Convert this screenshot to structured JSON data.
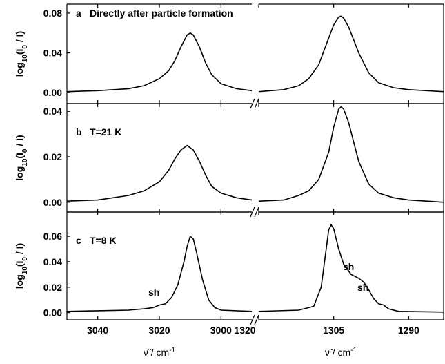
{
  "chart_data": [
    {
      "type": "line",
      "panel_label": "a",
      "annotation": "Directly after particle formation",
      "ylabel": [
        "log",
        "10",
        "(I",
        "0",
        " / I)"
      ],
      "color": "#000000",
      "ylim": [
        -0.011,
        0.089
      ],
      "yticks": [
        {
          "value": 0,
          "label": "0.00"
        },
        {
          "value": 0.04,
          "label": "0.04"
        },
        {
          "value": 0.08,
          "label": "0.08"
        }
      ],
      "segments": [
        {
          "xlim": [
            3050,
            2990
          ],
          "xticks": [
            3040,
            3020,
            3000
          ],
          "x": [
            3050,
            3040,
            3030,
            3025,
            3020,
            3017,
            3015,
            3013,
            3011,
            3010,
            3009,
            3007,
            3005,
            3003,
            3000,
            2995,
            2990
          ],
          "values": [
            0.001,
            0.002,
            0.004,
            0.007,
            0.014,
            0.022,
            0.032,
            0.046,
            0.058,
            0.06,
            0.058,
            0.046,
            0.03,
            0.018,
            0.009,
            0.004,
            0.002
          ]
        },
        {
          "xlim": [
            1320,
            1283
          ],
          "xticks": [
            1320,
            1305,
            1290
          ],
          "x": [
            1320,
            1315,
            1312,
            1310,
            1308,
            1306,
            1305,
            1304,
            1303.5,
            1303,
            1302,
            1300,
            1298,
            1296,
            1293,
            1290,
            1283
          ],
          "values": [
            0.001,
            0.003,
            0.007,
            0.014,
            0.028,
            0.055,
            0.068,
            0.076,
            0.077,
            0.075,
            0.066,
            0.04,
            0.02,
            0.01,
            0.005,
            0.003,
            0.001
          ]
        }
      ]
    },
    {
      "type": "line",
      "panel_label": "b",
      "annotation": "T=21 K",
      "ylabel": [
        "log",
        "10",
        "(I",
        "0",
        " / I)"
      ],
      "color": "#000000",
      "ylim": [
        -0.0043,
        0.0434
      ],
      "yticks": [
        {
          "value": 0,
          "label": "0.00"
        },
        {
          "value": 0.02,
          "label": "0.02"
        },
        {
          "value": 0.04,
          "label": "0.04"
        }
      ],
      "segments": [
        {
          "xlim": [
            3050,
            2990
          ],
          "xticks": [
            3040,
            3020,
            3000
          ],
          "x": [
            3050,
            3040,
            3030,
            3025,
            3020,
            3017,
            3015,
            3013,
            3011,
            3009,
            3007,
            3005,
            3003,
            3000,
            2995,
            2990
          ],
          "values": [
            0.0005,
            0.001,
            0.003,
            0.005,
            0.009,
            0.014,
            0.019,
            0.023,
            0.025,
            0.023,
            0.018,
            0.012,
            0.007,
            0.004,
            0.002,
            0.001
          ]
        },
        {
          "xlim": [
            1320,
            1283
          ],
          "xticks": [
            1320,
            1305,
            1290
          ],
          "x": [
            1320,
            1315,
            1312,
            1310,
            1308,
            1306,
            1305,
            1304,
            1303.5,
            1303,
            1302,
            1300,
            1298,
            1296,
            1293,
            1290,
            1283
          ],
          "values": [
            0.0005,
            0.001,
            0.003,
            0.005,
            0.01,
            0.022,
            0.033,
            0.041,
            0.042,
            0.041,
            0.035,
            0.018,
            0.008,
            0.004,
            0.002,
            0.001,
            0
          ]
        }
      ]
    },
    {
      "type": "line",
      "panel_label": "c",
      "annotation": "T=8 K",
      "ylabel": [
        "log",
        "10",
        "(I",
        "0",
        " / I)"
      ],
      "color": "#000000",
      "ylim": [
        -0.0056,
        0.079
      ],
      "yticks": [
        {
          "value": 0,
          "label": "0.00"
        },
        {
          "value": 0.02,
          "label": "0.02"
        },
        {
          "value": 0.04,
          "label": "0.04"
        },
        {
          "value": 0.06,
          "label": "0.06"
        }
      ],
      "shoulders": [
        "sh",
        "sh",
        "sh"
      ],
      "segments": [
        {
          "xlim": [
            3050,
            2990
          ],
          "xticks": [
            3040,
            3020,
            3000
          ],
          "xlabel": [
            "ν̃ / cm",
            "-1"
          ],
          "x": [
            3050,
            3040,
            3030,
            3025,
            3022,
            3020,
            3018,
            3016,
            3014,
            3012,
            3011,
            3010,
            3009,
            3008,
            3006,
            3004,
            3002,
            3000,
            2990
          ],
          "values": [
            0.001,
            0.0015,
            0.002,
            0.003,
            0.004,
            0.006,
            0.007,
            0.012,
            0.022,
            0.04,
            0.052,
            0.06,
            0.058,
            0.048,
            0.026,
            0.01,
            0.004,
            0.002,
            0.001
          ]
        },
        {
          "xlim": [
            1320,
            1283
          ],
          "xticks": [
            1320,
            1305,
            1290
          ],
          "xlabel": [
            "ν̃ / cm",
            "-1"
          ],
          "x": [
            1320,
            1312,
            1309,
            1307.5,
            1306.5,
            1306,
            1305.5,
            1305,
            1304,
            1303,
            1301.5,
            1300,
            1299,
            1298,
            1297,
            1296,
            1295,
            1294,
            1292,
            1283
          ],
          "values": [
            0.001,
            0.002,
            0.005,
            0.02,
            0.05,
            0.065,
            0.069,
            0.066,
            0.05,
            0.038,
            0.03,
            0.027,
            0.024,
            0.018,
            0.011,
            0.007,
            0.006,
            0.003,
            0.001,
            0.0005
          ]
        }
      ]
    }
  ]
}
